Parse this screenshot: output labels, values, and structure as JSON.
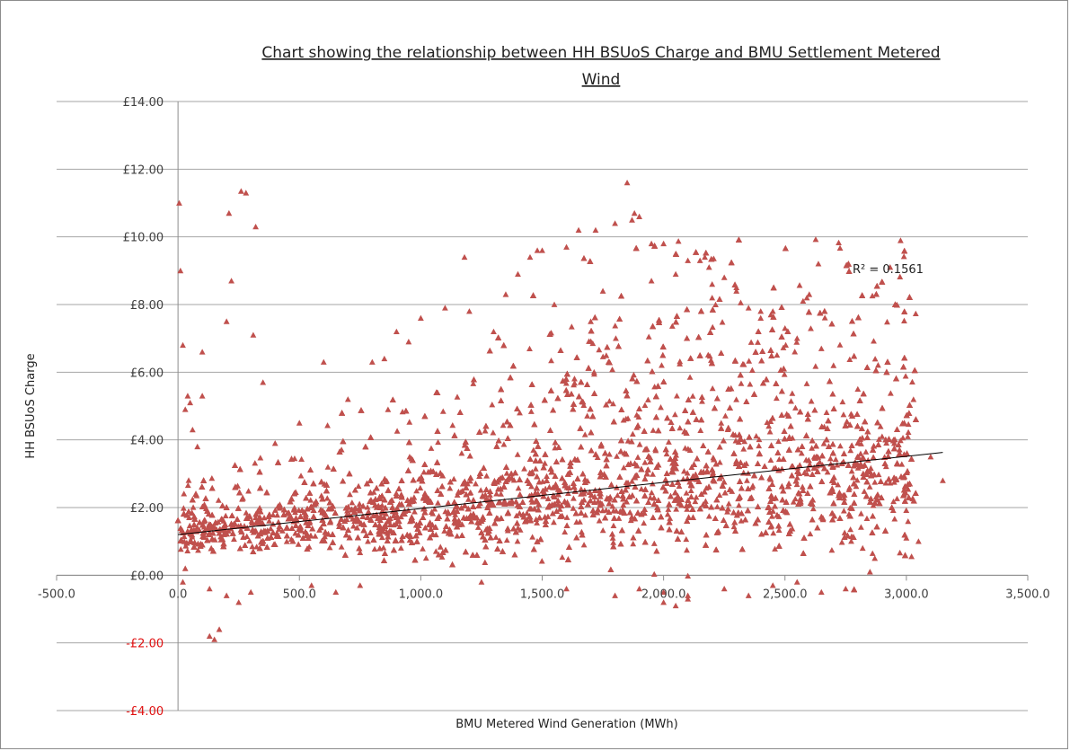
{
  "chart_data": {
    "type": "scatter",
    "title_lines": [
      "Chart showing the relationship between HH BSUoS Charge and BMU Settlement Metered",
      "Wind"
    ],
    "xlabel": "BMU Metered Wind Generation (MWh)",
    "ylabel": "HH BSUoS Charge",
    "xlim": [
      -500,
      3500
    ],
    "ylim": [
      -4,
      14
    ],
    "x_ticks": [
      -500,
      0,
      500,
      1000,
      1500,
      2000,
      2500,
      3000,
      3500
    ],
    "x_tick_labels": [
      "-500.0",
      "0.0",
      "500.0",
      "1,000.0",
      "1,500.0",
      "2,000.0",
      "2,500.0",
      "3,000.0",
      "3,500.0"
    ],
    "y_ticks": [
      14,
      12,
      10,
      8,
      6,
      4,
      2,
      0,
      -2,
      -4
    ],
    "y_tick_labels": [
      "£14.00",
      "£12.00",
      "£10.00",
      "£8.00",
      "£6.00",
      "£4.00",
      "£2.00",
      "£0.00",
      "-£2.00",
      "-£4.00"
    ],
    "negative_label_color": "#e01010",
    "marker_shape": "triangle",
    "marker_color": "#c0504d",
    "grid": true,
    "trendline": {
      "x": [
        0,
        3150
      ],
      "y": [
        1.2,
        3.63
      ],
      "r_squared_label": "R² = 0.1561"
    },
    "series": [
      {
        "x": [
          5,
          10,
          20,
          40,
          30,
          260,
          280,
          210,
          220,
          320,
          310,
          200,
          100,
          150,
          130,
          170,
          1850,
          1900,
          1800,
          1880,
          1870,
          1950,
          1720,
          1650,
          1600,
          1450,
          1480,
          1500,
          1180,
          2050,
          2150,
          2170,
          2100,
          2000,
          2600,
          2590,
          2300,
          2250,
          2200,
          2350,
          2400,
          2450,
          2500,
          2550,
          2700,
          2650,
          2800,
          2900,
          2950,
          3000,
          3050,
          3100,
          3150,
          2990,
          3030,
          2820,
          2870,
          1000,
          900,
          950,
          850,
          800,
          1100,
          1200,
          1300,
          1350,
          1400,
          1550,
          1700,
          1750,
          1950,
          2050,
          2200,
          2300,
          2400,
          700,
          600,
          500,
          400,
          350,
          100,
          50,
          60,
          80,
          20,
          30,
          130,
          200,
          250,
          300,
          550,
          650,
          750,
          1250,
          1600,
          1800,
          2000,
          2100,
          2250,
          2350,
          2450,
          2550,
          2650,
          2750,
          2850,
          2000,
          2100,
          1900,
          2050
        ],
        "y": [
          11.0,
          9.0,
          6.8,
          5.3,
          4.9,
          11.35,
          11.3,
          10.7,
          8.7,
          10.3,
          7.1,
          7.5,
          6.6,
          -1.9,
          -1.8,
          -1.6,
          11.6,
          10.6,
          10.4,
          10.7,
          10.5,
          9.8,
          10.2,
          10.2,
          9.7,
          9.4,
          9.6,
          9.6,
          9.4,
          9.5,
          9.3,
          9.4,
          9.3,
          9.8,
          8.3,
          8.2,
          8.5,
          8.8,
          8.6,
          7.9,
          7.6,
          7.8,
          7.3,
          7.0,
          6.2,
          6.7,
          5.5,
          4.1,
          3.9,
          1.1,
          1.0,
          3.5,
          2.8,
          2.4,
          2.2,
          0.8,
          0.5,
          7.6,
          7.2,
          6.9,
          6.4,
          6.3,
          7.9,
          7.8,
          7.2,
          8.3,
          8.9,
          8.0,
          7.5,
          8.4,
          8.7,
          8.9,
          8.2,
          8.4,
          7.8,
          5.2,
          6.3,
          4.5,
          3.9,
          5.7,
          5.3,
          5.1,
          4.3,
          3.8,
          -0.2,
          0.2,
          -0.4,
          -0.6,
          -0.8,
          -0.5,
          -0.3,
          -0.5,
          -0.3,
          -0.2,
          -0.4,
          -0.6,
          -0.5,
          -0.7,
          -0.4,
          -0.6,
          -0.3,
          -0.2,
          -0.5,
          -0.4,
          0.1,
          -0.8,
          -0.6,
          -0.4,
          -0.9
        ]
      }
    ]
  }
}
